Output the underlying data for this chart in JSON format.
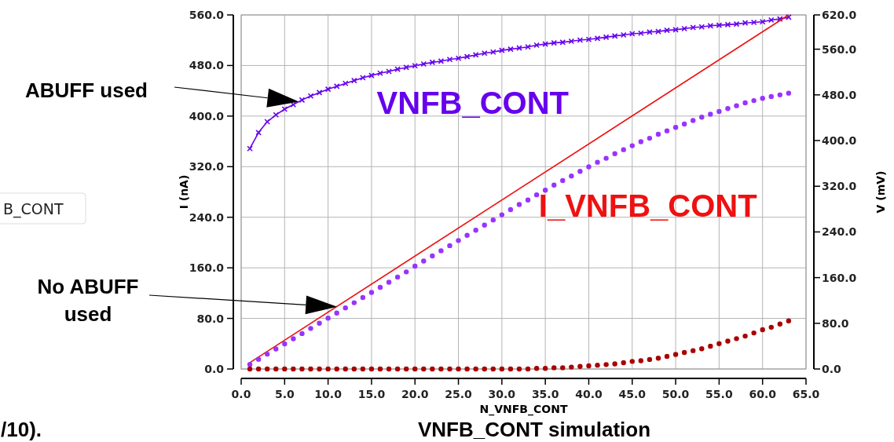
{
  "chart_data": {
    "type": "line",
    "title": "VNFB_CONT simulation",
    "xlabel": "N_VNFB_CONT",
    "ylabel": "I (nA)",
    "y2label": "V (mV)",
    "annotations": [
      "ABUFF used",
      "No ABUFF used",
      "B_CONT",
      "/10)."
    ],
    "xlim": [
      0,
      65
    ],
    "xticks": [
      {
        "value": 0,
        "label": "0.0"
      },
      {
        "value": 5,
        "label": "5.0"
      },
      {
        "value": 10,
        "label": "10.0"
      },
      {
        "value": 15,
        "label": "15.0"
      },
      {
        "value": 20,
        "label": "20.0"
      },
      {
        "value": 25,
        "label": "25.0"
      },
      {
        "value": 30,
        "label": "30.0"
      },
      {
        "value": 35,
        "label": "35.0"
      },
      {
        "value": 40,
        "label": "40.0"
      },
      {
        "value": 45,
        "label": "45.0"
      },
      {
        "value": 50,
        "label": "50.0"
      },
      {
        "value": 55,
        "label": "55.0"
      },
      {
        "value": 60,
        "label": "60.0"
      },
      {
        "value": 65,
        "label": "65.0"
      }
    ],
    "ylim": [
      0,
      560
    ],
    "yticks": [
      {
        "value": 0,
        "label": "0.0"
      },
      {
        "value": 80,
        "label": "80.0"
      },
      {
        "value": 160,
        "label": "160.0"
      },
      {
        "value": 240,
        "label": "240.0"
      },
      {
        "value": 320,
        "label": "320.0"
      },
      {
        "value": 400,
        "label": "400.0"
      },
      {
        "value": 480,
        "label": "480.0"
      },
      {
        "value": 560,
        "label": "560.0"
      }
    ],
    "y2lim": [
      0,
      620
    ],
    "y2ticks": [
      {
        "value": 0,
        "label": "0.0"
      },
      {
        "value": 80,
        "label": "80.0"
      },
      {
        "value": 160,
        "label": "160.0"
      },
      {
        "value": 240,
        "label": "240.0"
      },
      {
        "value": 320,
        "label": "320.0"
      },
      {
        "value": 400,
        "label": "400.0"
      },
      {
        "value": 480,
        "label": "480.0"
      },
      {
        "value": 560,
        "label": "560.0"
      },
      {
        "value": 620,
        "label": "620.0"
      }
    ],
    "grid": true,
    "legend": false,
    "series": [
      {
        "name": "VNFB_CONT",
        "type": "line",
        "axis": "y2",
        "color": "#6600ee",
        "marker": "cross",
        "x": [
          1,
          2,
          3,
          4,
          5,
          6,
          7,
          8,
          9,
          10,
          11,
          12,
          13,
          14,
          15,
          16,
          17,
          18,
          19,
          20,
          21,
          22,
          23,
          24,
          25,
          26,
          27,
          28,
          29,
          30,
          31,
          32,
          33,
          34,
          35,
          36,
          37,
          38,
          39,
          40,
          41,
          42,
          43,
          44,
          45,
          46,
          47,
          48,
          49,
          50,
          51,
          52,
          53,
          54,
          55,
          56,
          57,
          58,
          59,
          60,
          61,
          62,
          63
        ],
        "values": [
          386,
          414,
          433,
          445,
          455,
          463,
          471,
          478,
          484,
          490,
          495,
          500,
          505,
          510,
          514,
          518,
          521,
          525,
          528,
          531,
          534,
          537,
          539,
          542,
          544,
          547,
          550,
          553,
          555,
          558,
          560,
          562,
          564,
          567,
          569,
          571,
          572,
          574,
          576,
          577,
          579,
          581,
          583,
          585,
          587,
          588,
          590,
          591,
          593,
          594,
          596,
          598,
          599,
          601,
          602,
          603,
          604,
          606,
          607,
          608,
          611,
          613,
          616
        ]
      },
      {
        "name": "I_VNFB_CONT",
        "type": "line",
        "axis": "y",
        "color": "#ee1111",
        "marker": "none",
        "x": [
          1,
          63
        ],
        "values": [
          10,
          560
        ]
      },
      {
        "type": "scatter",
        "axis": "y2",
        "color": "#9933ff",
        "marker": "circle",
        "x": [
          1,
          2,
          3,
          4,
          5,
          6,
          7,
          8,
          9,
          10,
          11,
          12,
          13,
          14,
          15,
          16,
          17,
          18,
          19,
          20,
          21,
          22,
          23,
          24,
          25,
          26,
          27,
          28,
          29,
          30,
          31,
          32,
          33,
          34,
          35,
          36,
          37,
          38,
          39,
          40,
          41,
          42,
          43,
          44,
          45,
          46,
          47,
          48,
          49,
          50,
          51,
          52,
          53,
          54,
          55,
          56,
          57,
          58,
          59,
          60,
          61,
          62,
          63
        ],
        "values": [
          8,
          17,
          26,
          35,
          44,
          53,
          62,
          71,
          80,
          89,
          98,
          107,
          116,
          125,
          134,
          143,
          152,
          161,
          170,
          180,
          189,
          198,
          207,
          216,
          225,
          234,
          243,
          252,
          261,
          270,
          279,
          288,
          296,
          305,
          313,
          322,
          330,
          338,
          346,
          354,
          362,
          369,
          377,
          384,
          391,
          398,
          404,
          411,
          417,
          423,
          429,
          435,
          441,
          446,
          451,
          456,
          461,
          466,
          470,
          474,
          477,
          480,
          483
        ]
      },
      {
        "type": "scatter",
        "axis": "y",
        "color": "#aa0000",
        "marker": "circle",
        "x": [
          1,
          2,
          3,
          4,
          5,
          6,
          7,
          8,
          9,
          10,
          11,
          12,
          13,
          14,
          15,
          16,
          17,
          18,
          19,
          20,
          21,
          22,
          23,
          24,
          25,
          26,
          27,
          28,
          29,
          30,
          31,
          32,
          33,
          34,
          35,
          36,
          37,
          38,
          39,
          40,
          41,
          42,
          43,
          44,
          45,
          46,
          47,
          48,
          49,
          50,
          51,
          52,
          53,
          54,
          55,
          56,
          57,
          58,
          59,
          60,
          61,
          62,
          63
        ],
        "values": [
          0,
          0,
          0,
          0,
          0,
          0,
          0,
          0,
          0,
          0,
          0,
          0,
          0,
          0,
          0,
          0,
          0,
          0,
          0,
          0,
          0,
          0,
          0,
          0,
          0,
          0,
          0,
          0,
          0,
          0,
          0,
          0,
          0,
          1,
          1,
          2,
          2,
          3,
          4,
          5,
          6,
          7,
          8,
          10,
          12,
          13,
          15,
          17,
          20,
          23,
          26,
          29,
          32,
          36,
          40,
          44,
          48,
          52,
          57,
          62,
          66,
          71,
          76
        ]
      }
    ]
  }
}
